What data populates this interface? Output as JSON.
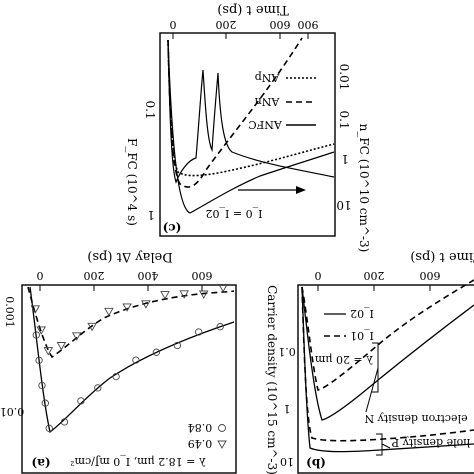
{
  "chart_data": [
    {
      "panel": "(c)",
      "type": "line",
      "top_axis_label": "Time t (ps)",
      "top_ticks": [
        "0",
        "200",
        "600",
        "900"
      ],
      "left_axis_label": "F_FC (10^4 s)",
      "left_ticks": [
        "1",
        "0.1",
        "1"
      ],
      "right_axis_label": "n_FC (10^10 cm^-3)",
      "right_ticks": [
        "10",
        "1",
        "0.1",
        "0.01"
      ],
      "annotation": "I_0 = I_02",
      "legend": [
        "ANp",
        "ANn",
        "ANFC"
      ],
      "series": [
        {
          "name": "ANp",
          "style": "dotted",
          "t": [
            20,
            50,
            100,
            200,
            300,
            450,
            600,
            800,
            1000
          ],
          "y": [
            1.3,
            0.6,
            0.42,
            0.44,
            0.5,
            0.6,
            0.7,
            0.84,
            0.97
          ]
        },
        {
          "name": "ANn",
          "style": "dashed",
          "t": [
            20,
            40,
            60,
            100,
            200,
            350,
            500,
            700,
            1000
          ],
          "y": [
            1.3,
            0.9,
            0.87,
            0.93,
            1.0,
            1.25,
            1.9,
            3.0,
            5.0
          ]
        },
        {
          "name": "ANFC",
          "style": "solid",
          "t": [
            20,
            60,
            100,
            150,
            170,
            200,
            250,
            300,
            400,
            600,
            800,
            1000
          ],
          "y": [
            0.5,
            0.2,
            0.3,
            0.35,
            0.9,
            0.35,
            0.45,
            0.6,
            0.8,
            1.2,
            1.6,
            2.0
          ]
        }
      ]
    },
    {
      "panel": "(a)",
      "type": "scatter",
      "top_axis_label": "Delay Δt (ps)",
      "top_ticks": [
        "0",
        "200",
        "400",
        "600"
      ],
      "left_ticks": [
        "0.01",
        "0.001"
      ],
      "legend_markers": [
        {
          "symbol": "circle",
          "label": "0.84"
        },
        {
          "symbol": "triangle",
          "label": "0.49"
        }
      ],
      "annotation": "λ = 18.2 μm, I_0 mJ/cm²",
      "series": [
        {
          "name": "0.84",
          "marker": "circle",
          "t": [
            40,
            60,
            90,
            120,
            160,
            200,
            250,
            300,
            350,
            400,
            450,
            500,
            550,
            600
          ],
          "y": [
            0.004,
            0.012,
            0.018,
            0.025,
            0.03,
            0.038,
            0.042,
            0.05,
            0.055,
            0.062,
            0.068,
            0.073,
            0.078,
            0.082
          ]
        },
        {
          "name": "0.49",
          "marker": "triangle",
          "t": [
            40,
            70,
            100,
            140,
            180,
            230,
            280,
            330,
            380,
            430,
            480,
            530,
            600
          ],
          "y": [
            0.002,
            0.004,
            0.006,
            0.008,
            0.01,
            0.013,
            0.016,
            0.018,
            0.02,
            0.022,
            0.024,
            0.026,
            0.028
          ]
        }
      ]
    },
    {
      "panel": "(b)",
      "type": "line",
      "top_axis_label": "Time t (ps)",
      "top_ticks": [
        "0",
        "200",
        "600"
      ],
      "left_axis_label": "Carrier density (10^15 cm^-3)",
      "left_ticks": [
        "0.1",
        "1",
        "10"
      ],
      "legend": [
        "I_02",
        "I_01"
      ],
      "annotation_lambda": "λ = 20 μm",
      "label_electron": "electron density N",
      "label_hole": "hole density P",
      "series": [
        {
          "name": "I_02",
          "style": "solid",
          "t": [
            10,
            40,
            80,
            150,
            300,
            600,
            1000
          ],
          "y": [
            0.02,
            0.5,
            1.6,
            1.9,
            2.6,
            4.3,
            8.5
          ]
        },
        {
          "name": "I_01",
          "style": "dashed",
          "t": [
            10,
            40,
            80,
            150,
            300,
            600,
            1000
          ],
          "y": [
            0.02,
            0.35,
            0.9,
            1.0,
            1.4,
            2.4,
            5.0
          ]
        }
      ]
    }
  ]
}
